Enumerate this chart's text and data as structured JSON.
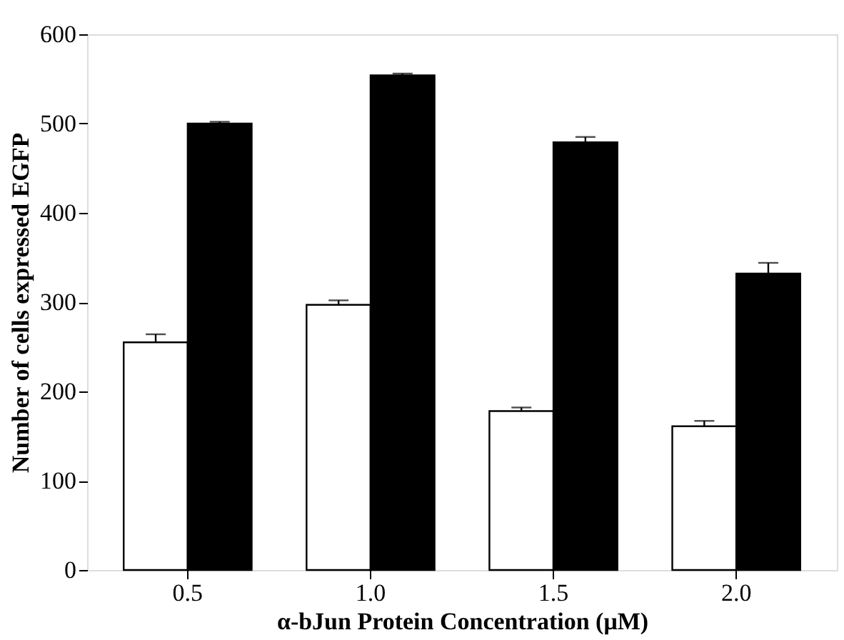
{
  "chart_data": {
    "type": "bar",
    "xlabel": "α-bJun Protein Concentration (μM)",
    "ylabel": "Number of cells expressed EGFP",
    "categories": [
      "0.5",
      "1.0",
      "1.5",
      "2.0"
    ],
    "series": [
      {
        "color": "#ffffff",
        "values": [
          255,
          297,
          178,
          161
        ],
        "errors": [
          [
            255,
            264
          ],
          [
            297,
            302
          ],
          [
            178,
            182
          ],
          [
            161,
            167
          ]
        ]
      },
      {
        "color": "#000000",
        "values": [
          500,
          554,
          479,
          332
        ],
        "errors": [
          [
            500,
            502
          ],
          [
            554,
            556
          ],
          [
            479,
            485
          ],
          [
            332,
            344
          ]
        ]
      }
    ],
    "ylim": [
      0,
      600
    ],
    "yticks": [
      0,
      100,
      200,
      300,
      400,
      500,
      600
    ],
    "grid": false,
    "legend": false
  }
}
